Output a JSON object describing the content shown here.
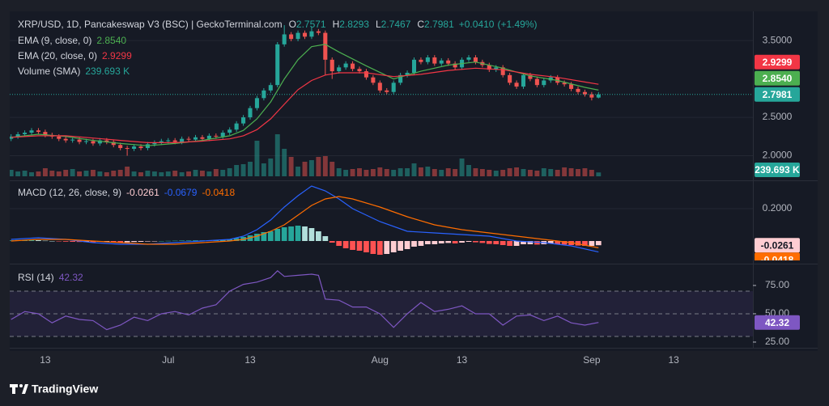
{
  "chart_data": [
    {
      "type": "candlestick",
      "title": "XRP/USD, 1D, Pancakeswap V3 (BSC) | GeckoTerminal.com",
      "ohlc_letters": [
        "O",
        "H",
        "L",
        "C"
      ],
      "change": {
        "value": 0.041,
        "label": "+0.0410"
      },
      "change_pct": {
        "value": 1.49,
        "label": "(+1.49%)"
      },
      "up_color": "#26a69a",
      "down_color": "#ef5350",
      "xlim": [
        -0.2,
        108.6
      ],
      "xticks": [
        {
          "value": 5,
          "label": "13"
        },
        {
          "value": 23,
          "label": "Jul"
        },
        {
          "value": 35,
          "label": "13"
        },
        {
          "value": 54,
          "label": "Aug"
        },
        {
          "value": 66,
          "label": "13"
        },
        {
          "value": 85,
          "label": "Sep"
        },
        {
          "value": 97,
          "label": "13"
        }
      ],
      "ylim": [
        1.69,
        3.88
      ],
      "yticks": [
        {
          "value": 2,
          "label": "2.0000"
        },
        {
          "value": 2.5,
          "label": "2.5000"
        },
        {
          "value": 3.5,
          "label": "3.5000"
        }
      ],
      "open": [
        2.22,
        2.25,
        2.28,
        2.3,
        2.33,
        2.31,
        2.27,
        2.25,
        2.22,
        2.2,
        2.21,
        2.18,
        2.19,
        2.16,
        2.2,
        2.18,
        2.14,
        2.1,
        2.09,
        2.12,
        2.1,
        2.15,
        2.17,
        2.19,
        2.2,
        2.18,
        2.22,
        2.21,
        2.24,
        2.22,
        2.26,
        2.25,
        2.3,
        2.34,
        2.42,
        2.5,
        2.62,
        2.75,
        2.85,
        2.92,
        3.45,
        3.58,
        3.52,
        3.6,
        3.55,
        3.62,
        3.6,
        3.25,
        3.1,
        3.15,
        3.2,
        3.13,
        3.1,
        3.02,
        2.95,
        2.85,
        2.83,
        2.95,
        3.05,
        3.08,
        3.25,
        3.22,
        3.28,
        3.2,
        3.24,
        3.2,
        3.15,
        3.25,
        3.28,
        3.22,
        3.18,
        3.12,
        3.15,
        3.05,
        2.95,
        2.9,
        3.05,
        3.0,
        2.92,
        2.98,
        3.02,
        2.95,
        2.93,
        2.87,
        2.83,
        2.8,
        2.7571
      ],
      "high": [
        2.28,
        2.31,
        2.33,
        2.36,
        2.36,
        2.34,
        2.3,
        2.28,
        2.25,
        2.24,
        2.24,
        2.22,
        2.22,
        2.23,
        2.23,
        2.21,
        2.17,
        2.13,
        2.15,
        2.15,
        2.18,
        2.2,
        2.22,
        2.23,
        2.23,
        2.25,
        2.25,
        2.27,
        2.27,
        2.29,
        2.29,
        2.33,
        2.37,
        2.45,
        2.53,
        2.65,
        2.78,
        2.88,
        2.95,
        3.48,
        3.7,
        3.61,
        3.63,
        3.63,
        3.68,
        3.65,
        3.63,
        3.28,
        3.18,
        3.23,
        3.23,
        3.16,
        3.13,
        3.05,
        2.98,
        2.88,
        2.98,
        3.08,
        3.11,
        3.28,
        3.28,
        3.31,
        3.31,
        3.27,
        3.27,
        3.23,
        3.28,
        3.31,
        3.31,
        3.25,
        3.21,
        3.18,
        3.18,
        3.08,
        2.98,
        3.08,
        3.08,
        3.03,
        3.01,
        3.05,
        3.05,
        2.98,
        2.96,
        2.9,
        2.86,
        2.83,
        2.8293
      ],
      "low": [
        2.19,
        2.22,
        2.25,
        2.27,
        2.28,
        2.24,
        2.22,
        2.19,
        2.17,
        2.17,
        2.15,
        2.15,
        2.13,
        2.13,
        2.15,
        2.11,
        2.07,
        2.0,
        2.06,
        2.07,
        2.07,
        2.12,
        2.14,
        2.16,
        2.15,
        2.15,
        2.18,
        2.18,
        2.19,
        2.19,
        2.22,
        2.22,
        2.27,
        2.31,
        2.39,
        2.47,
        2.59,
        2.72,
        2.82,
        2.89,
        3.42,
        3.49,
        3.49,
        3.52,
        3.52,
        3.57,
        3.05,
        3.0,
        3.07,
        3.12,
        3.1,
        3.07,
        2.99,
        2.92,
        2.82,
        2.8,
        2.8,
        2.92,
        3.02,
        3.05,
        3.19,
        3.19,
        3.17,
        3.17,
        3.17,
        3.12,
        3.12,
        3.22,
        3.19,
        3.15,
        3.09,
        3.09,
        3.02,
        2.92,
        2.87,
        2.87,
        2.97,
        2.89,
        2.89,
        2.95,
        2.92,
        2.9,
        2.84,
        2.8,
        2.77,
        2.72,
        2.7467
      ],
      "close": [
        2.25,
        2.28,
        2.3,
        2.33,
        2.31,
        2.27,
        2.25,
        2.22,
        2.2,
        2.21,
        2.18,
        2.19,
        2.16,
        2.2,
        2.18,
        2.14,
        2.1,
        2.09,
        2.12,
        2.1,
        2.15,
        2.17,
        2.19,
        2.2,
        2.18,
        2.22,
        2.21,
        2.24,
        2.22,
        2.26,
        2.25,
        2.3,
        2.34,
        2.42,
        2.5,
        2.62,
        2.75,
        2.85,
        2.92,
        3.45,
        3.58,
        3.52,
        3.6,
        3.55,
        3.62,
        3.6,
        3.25,
        3.1,
        3.15,
        3.2,
        3.13,
        3.1,
        3.02,
        2.95,
        2.85,
        2.83,
        2.95,
        3.05,
        3.08,
        3.25,
        3.22,
        3.28,
        3.2,
        3.24,
        3.2,
        3.15,
        3.25,
        3.28,
        3.22,
        3.18,
        3.12,
        3.15,
        3.05,
        2.95,
        2.9,
        3.05,
        3.0,
        2.92,
        2.98,
        3.02,
        2.95,
        2.93,
        2.87,
        2.83,
        2.8,
        2.7571,
        2.7981
      ],
      "lines": [
        {
          "name": "EMA (9, close, 0)",
          "color": "#4caf50",
          "last_label": "2.8540",
          "x": [
            0,
            4,
            8,
            12,
            16,
            20,
            24,
            28,
            32,
            34,
            36,
            38,
            40,
            42,
            44,
            46,
            48,
            52,
            56,
            60,
            64,
            68,
            72,
            76,
            80,
            84,
            86
          ],
          "values": [
            2.24,
            2.28,
            2.25,
            2.2,
            2.16,
            2.13,
            2.16,
            2.2,
            2.26,
            2.33,
            2.48,
            2.7,
            3.0,
            3.25,
            3.42,
            3.45,
            3.35,
            3.17,
            3.0,
            3.1,
            3.18,
            3.22,
            3.14,
            3.04,
            2.98,
            2.89,
            2.854
          ]
        },
        {
          "name": "EMA (20, close, 0)",
          "color": "#f23645",
          "last_label": "2.9299",
          "x": [
            0,
            4,
            8,
            12,
            16,
            20,
            24,
            28,
            32,
            34,
            36,
            38,
            40,
            42,
            44,
            46,
            48,
            52,
            56,
            60,
            64,
            68,
            72,
            76,
            80,
            84,
            86
          ],
          "values": [
            2.24,
            2.26,
            2.26,
            2.23,
            2.2,
            2.17,
            2.17,
            2.19,
            2.22,
            2.26,
            2.34,
            2.48,
            2.67,
            2.86,
            2.98,
            3.05,
            3.08,
            3.08,
            3.03,
            3.06,
            3.11,
            3.14,
            3.12,
            3.06,
            3.02,
            2.96,
            2.9299
          ]
        }
      ],
      "volume": {
        "name": "Volume (SMA)",
        "last_label": "239.693 K",
        "ylim": [
          0,
          5000
        ],
        "values": [
          400,
          300,
          350,
          250,
          300,
          500,
          350,
          300,
          400,
          450,
          300,
          350,
          400,
          300,
          250,
          350,
          400,
          600,
          300,
          250,
          350,
          300,
          250,
          300,
          350,
          250,
          300,
          400,
          350,
          300,
          450,
          400,
          500,
          700,
          750,
          900,
          2200,
          800,
          1100,
          2600,
          1700,
          1200,
          600,
          900,
          1000,
          1200,
          1250,
          900,
          500,
          400,
          450,
          500,
          400,
          450,
          550,
          450,
          400,
          500,
          500,
          800,
          550,
          600,
          450,
          400,
          500,
          450,
          1100,
          700,
          500,
          450,
          400,
          350,
          400,
          500,
          550,
          450,
          400,
          350,
          500,
          450,
          400,
          550,
          500,
          450,
          500,
          400,
          239.693
        ]
      }
    },
    {
      "type": "macd",
      "title": "MACD (12, 26, close, 9)",
      "ylim": [
        -0.12,
        0.365
      ],
      "yticks": [
        {
          "value": 0.2,
          "label": "0.2000"
        }
      ],
      "histogram": {
        "colors": [
          "#26a69a",
          "#b2dfdb",
          "#ffcdd2",
          "#ff5252"
        ],
        "values": [
          0.004,
          0.006,
          0.006,
          0.007,
          0.005,
          0.002,
          0,
          -0.002,
          -0.004,
          -0.005,
          -0.006,
          -0.006,
          -0.007,
          -0.005,
          -0.005,
          -0.006,
          -0.008,
          -0.008,
          -0.006,
          -0.005,
          -0.003,
          -0.002,
          0,
          0.001,
          0.002,
          0.003,
          0.003,
          0.004,
          0.004,
          0.005,
          0.006,
          0.008,
          0.012,
          0.018,
          0.025,
          0.035,
          0.045,
          0.055,
          0.06,
          0.075,
          0.085,
          0.09,
          0.095,
          0.09,
          0.08,
          0.06,
          0.03,
          -0.01,
          -0.03,
          -0.045,
          -0.055,
          -0.06,
          -0.07,
          -0.08,
          -0.085,
          -0.08,
          -0.07,
          -0.06,
          -0.05,
          -0.035,
          -0.03,
          -0.02,
          -0.02,
          -0.015,
          -0.012,
          -0.015,
          -0.01,
          -0.005,
          -0.008,
          -0.012,
          -0.018,
          -0.02,
          -0.025,
          -0.03,
          -0.03,
          -0.02,
          -0.02,
          -0.022,
          -0.02,
          -0.015,
          -0.02,
          -0.022,
          -0.025,
          -0.028,
          -0.03,
          -0.03,
          -0.0261
        ]
      },
      "series": [
        {
          "color": "#2962ff",
          "x": [
            0,
            4,
            8,
            12,
            16,
            20,
            24,
            28,
            32,
            34,
            36,
            38,
            40,
            42,
            44,
            46,
            48,
            50,
            54,
            58,
            62,
            66,
            70,
            74,
            78,
            82,
            86
          ],
          "values": [
            0.01,
            0.02,
            0.01,
            -0.01,
            -0.02,
            -0.02,
            -0.01,
            0,
            0.01,
            0.03,
            0.07,
            0.13,
            0.21,
            0.28,
            0.34,
            0.31,
            0.26,
            0.2,
            0.12,
            0.06,
            0.05,
            0.04,
            0.03,
            0,
            -0.01,
            -0.03,
            -0.0679
          ]
        },
        {
          "color": "#ff6d00",
          "x": [
            0,
            4,
            8,
            12,
            16,
            20,
            24,
            28,
            32,
            34,
            36,
            38,
            40,
            42,
            44,
            46,
            48,
            50,
            54,
            58,
            62,
            66,
            70,
            74,
            78,
            82,
            86
          ],
          "values": [
            0,
            0.01,
            0.01,
            0,
            -0.01,
            -0.02,
            -0.02,
            -0.01,
            0,
            0.01,
            0.03,
            0.06,
            0.1,
            0.16,
            0.22,
            0.26,
            0.275,
            0.26,
            0.21,
            0.15,
            0.1,
            0.07,
            0.05,
            0.03,
            0.01,
            -0.01,
            -0.0418
          ]
        }
      ]
    },
    {
      "type": "rsi",
      "title": "RSI (14)",
      "color": "#7e57c2",
      "ylim": [
        21.4,
        91.4
      ],
      "yticks": [
        {
          "value": 75,
          "label": "75.00"
        },
        {
          "value": 50,
          "label": "50.00"
        },
        {
          "value": 25,
          "label": "25.00"
        }
      ],
      "levels": [
        70,
        50,
        30
      ],
      "x": [
        0,
        2,
        4,
        6,
        8,
        10,
        12,
        14,
        16,
        18,
        20,
        22,
        24,
        26,
        28,
        30,
        32,
        34,
        36,
        38,
        39,
        40,
        42,
        44,
        45,
        46,
        48,
        50,
        52,
        54,
        56,
        58,
        60,
        62,
        64,
        66,
        68,
        70,
        72,
        74,
        76,
        78,
        80,
        82,
        84,
        86
      ],
      "values": [
        45,
        52,
        50,
        42,
        48,
        45,
        44,
        36,
        40,
        47,
        44,
        50,
        52,
        49,
        55,
        58,
        70,
        76,
        78,
        82,
        88,
        83,
        84,
        85,
        84,
        63,
        62,
        56,
        56,
        50,
        38,
        50,
        60,
        52,
        54,
        57,
        50,
        50,
        40,
        48,
        49,
        44,
        48,
        42,
        40,
        42.32
      ]
    }
  ],
  "brand": "TradingView"
}
